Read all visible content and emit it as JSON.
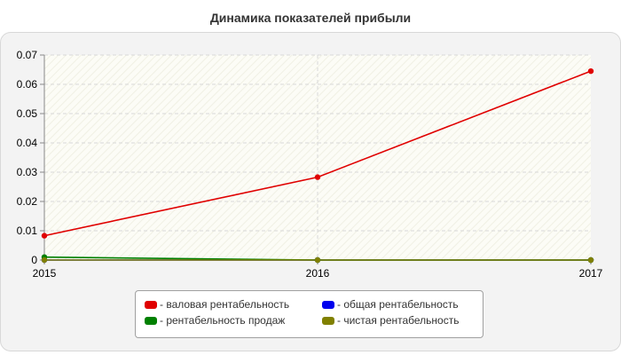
{
  "chart_data": {
    "type": "line",
    "title": "Динамика показателей прибыли",
    "x": [
      "2015",
      "2016",
      "2017"
    ],
    "ylim": [
      0,
      0.07
    ],
    "yticks": [
      "0",
      "0.01",
      "0.02",
      "0.03",
      "0.04",
      "0.05",
      "0.06",
      "0.07"
    ],
    "grid": true,
    "legend_placement": "bottom",
    "series": [
      {
        "name": "- валовая рентабельность",
        "color": "#e00000",
        "values": [
          0.0083,
          0.0283,
          0.0645
        ]
      },
      {
        "name": "- общая рентабельность",
        "color": "#0000ee",
        "values": [
          0.0,
          0.0,
          0.0
        ]
      },
      {
        "name": "- рентабельность продаж",
        "color": "#008000",
        "values": [
          0.001,
          0.0,
          0.0
        ]
      },
      {
        "name": "- чистая рентабельность",
        "color": "#808000",
        "values": [
          0.0,
          0.0,
          0.0
        ]
      }
    ]
  }
}
